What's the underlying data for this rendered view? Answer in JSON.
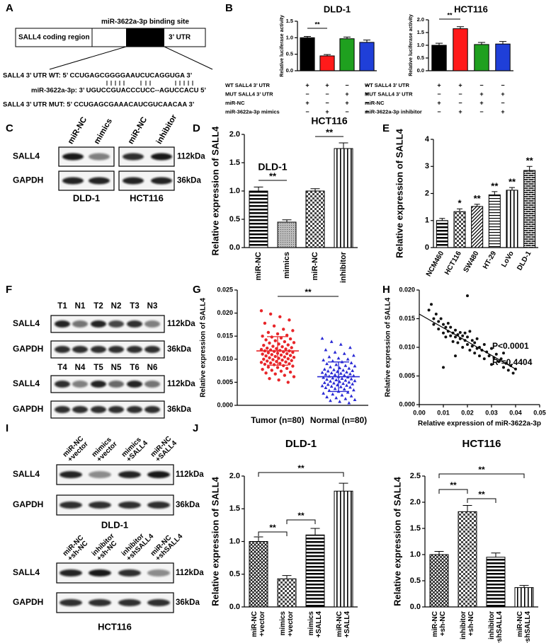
{
  "panel_labels": [
    "A",
    "B",
    "C",
    "D",
    "E",
    "F",
    "G",
    "H",
    "I",
    "J"
  ],
  "diagram": {
    "binding_site_label": "miR-3622a-3p binding site",
    "coding_region_label": "SALL4 coding region",
    "utr_label": "3’ UTR",
    "sequences": [
      "SALL4 3’ UTR WT: 5’ CCUGAGCGGGGAAUCUCAGGUGA 3’",
      "miR-3622a-3p:  3’ UGUCCGUACCCUCC--AGUCCACU 5’",
      "SALL4 3’ UTR MUT: 5’ CCUGAGCGAAACAUCGUCAACAA 3’"
    ]
  },
  "chart_data": [
    {
      "type": "bar",
      "title": "DLD-1",
      "y_label": "Relative luciferase activity",
      "values": [
        1.0,
        0.45,
        0.97,
        0.86
      ],
      "errors": [
        0.04,
        0.04,
        0.05,
        0.07
      ],
      "colors": [
        "#000000",
        "#ff1a1a",
        "#1fa01f",
        "#1f3fd8"
      ],
      "ylim": [
        0,
        1.5
      ],
      "yticks": [
        {
          "value": 0,
          "label": "0.0"
        },
        0.5,
        {
          "value": 1,
          "label": "1.0"
        },
        1.5
      ],
      "annotations": [
        "**"
      ],
      "conditions": [
        {
          "label": "WT SALL4 3’ UTR",
          "signs": [
            "+",
            "+",
            "−",
            "−"
          ]
        },
        {
          "label": "MUT SALL4 3’ UTR",
          "signs": [
            "−",
            "−",
            "+",
            "+"
          ]
        },
        {
          "label": "miR-NC",
          "signs": [
            "+",
            "−",
            "+",
            "−"
          ]
        },
        {
          "label": "miR-3622a-3p mimics",
          "signs": [
            "−",
            "+",
            "−",
            "+"
          ]
        }
      ]
    },
    {
      "type": "bar",
      "title": "HCT116",
      "y_label": "Relative luciferase activity",
      "values": [
        1.0,
        1.65,
        1.03,
        1.05
      ],
      "errors": [
        0.08,
        0.08,
        0.08,
        0.1
      ],
      "colors": [
        "#000000",
        "#ff1a1a",
        "#1fa01f",
        "#1f3fd8"
      ],
      "ylim": [
        0,
        2
      ],
      "yticks": [
        {
          "value": 0,
          "label": "0.0"
        },
        0.5,
        {
          "value": 1,
          "label": "1.0"
        },
        1.5,
        {
          "value": 2,
          "label": "2.0"
        }
      ],
      "annotations": [
        "**"
      ],
      "conditions": [
        {
          "label": "WT SALL4 3’ UTR",
          "signs": [
            "+",
            "+",
            "−",
            "−"
          ]
        },
        {
          "label": "MUT SALL4 3’ UTR",
          "signs": [
            "−",
            "−",
            "+",
            "+"
          ]
        },
        {
          "label": "miR-NC",
          "signs": [
            "+",
            "−",
            "+",
            "−"
          ]
        },
        {
          "label": "miR-3622a-3p inhibitor",
          "signs": [
            "−",
            "+",
            "−",
            "+"
          ]
        }
      ]
    },
    {
      "type": "bar",
      "y_label": "Relative expression of SALL4",
      "categories": [
        "miR-NC",
        "mimics",
        "miR-NC",
        "inhibitor"
      ],
      "values": [
        1.0,
        0.45,
        1.0,
        1.75
      ],
      "errors": [
        0.07,
        0.04,
        0.04,
        0.1
      ],
      "ylim": [
        0,
        2
      ],
      "yticks": [
        {
          "value": 0,
          "label": "0.0"
        },
        0.5,
        {
          "value": 1,
          "label": "1.0"
        },
        1.5,
        {
          "value": 2,
          "label": "2.0"
        }
      ],
      "group_labels": [
        "DLD-1",
        "HCT116"
      ],
      "annotations": [
        "**",
        "**"
      ]
    },
    {
      "type": "bar",
      "y_label": "Relative expression of SALL4",
      "categories": [
        "NCM460",
        "HCT116",
        "SW480",
        "HT-29",
        "LoVo",
        "DLD-1"
      ],
      "values": [
        1.0,
        1.33,
        1.52,
        1.95,
        2.12,
        2.85
      ],
      "errors": [
        0.08,
        0.1,
        0.08,
        0.12,
        0.1,
        0.15
      ],
      "value_annotations": [
        null,
        "*",
        "**",
        "**",
        "**",
        "**"
      ],
      "ylim": [
        0,
        4
      ],
      "yticks": [
        0,
        1,
        2,
        3,
        4
      ]
    },
    {
      "type": "dotplot",
      "y_label": "Relative expression of SALL4",
      "categories": [
        "Tumor (n=80)",
        "Normal (n=80)"
      ],
      "annotations": [
        "**"
      ],
      "ylim": [
        0,
        0.025
      ],
      "yticks": [
        {
          "value": 0,
          "label": "0.000"
        },
        0.005,
        {
          "value": 0.01,
          "label": "0.010"
        },
        0.015,
        {
          "value": 0.02,
          "label": "0.020"
        },
        0.025
      ],
      "groups": [
        {
          "color": "#e8262a",
          "mean": 0.0118,
          "sd": 0.0031,
          "values": [
            0.0205,
            0.0198,
            0.0192,
            0.0185,
            0.0178,
            0.0172,
            0.0165,
            0.0162,
            0.0158,
            0.0155,
            0.0152,
            0.015,
            0.0148,
            0.0146,
            0.0144,
            0.0142,
            0.014,
            0.0138,
            0.0136,
            0.0135,
            0.0133,
            0.0131,
            0.013,
            0.0128,
            0.0127,
            0.0125,
            0.0124,
            0.0123,
            0.0122,
            0.0121,
            0.012,
            0.0119,
            0.0118,
            0.0118,
            0.0117,
            0.0116,
            0.0115,
            0.0114,
            0.0113,
            0.0112,
            0.0111,
            0.011,
            0.0109,
            0.0108,
            0.0107,
            0.0106,
            0.0105,
            0.0104,
            0.0103,
            0.0102,
            0.0101,
            0.01,
            0.0099,
            0.0098,
            0.0097,
            0.0096,
            0.0095,
            0.0094,
            0.0093,
            0.0092,
            0.0091,
            0.009,
            0.0089,
            0.0088,
            0.0086,
            0.0085,
            0.0083,
            0.0082,
            0.008,
            0.0078,
            0.0076,
            0.0074,
            0.0072,
            0.007,
            0.0068,
            0.0065,
            0.0062,
            0.0058,
            0.0055,
            0.005
          ]
        },
        {
          "color": "#2a2ad4",
          "mean": 0.0062,
          "sd": 0.0032,
          "values": [
            0.0145,
            0.0138,
            0.0132,
            0.0125,
            0.012,
            0.0115,
            0.0112,
            0.0108,
            0.0105,
            0.0102,
            0.01,
            0.0098,
            0.0096,
            0.0094,
            0.0092,
            0.009,
            0.0088,
            0.0086,
            0.0085,
            0.0083,
            0.0081,
            0.008,
            0.0078,
            0.0077,
            0.0076,
            0.0075,
            0.0074,
            0.0073,
            0.0072,
            0.0071,
            0.007,
            0.0069,
            0.0068,
            0.0067,
            0.0066,
            0.0065,
            0.0064,
            0.0063,
            0.0062,
            0.0061,
            0.006,
            0.0059,
            0.0058,
            0.0057,
            0.0056,
            0.0055,
            0.0054,
            0.0053,
            0.0052,
            0.0051,
            0.005,
            0.0049,
            0.0048,
            0.0047,
            0.0046,
            0.0045,
            0.0044,
            0.0043,
            0.0042,
            0.0041,
            0.004,
            0.0039,
            0.0038,
            0.0036,
            0.0035,
            0.0033,
            0.0032,
            0.003,
            0.0028,
            0.0026,
            0.0024,
            0.0022,
            0.002,
            0.0018,
            0.0016,
            0.0014,
            0.0012,
            0.001,
            0.0008,
            0.0005
          ]
        }
      ]
    },
    {
      "type": "scatter",
      "x_label": "Relative expression of miR-3622a-3p",
      "y_label": "Relative expression of SALL4",
      "annotations": [
        "P<0.0001",
        "R²=0.4404"
      ],
      "xlim": [
        0,
        0.05
      ],
      "xticks": [
        {
          "value": 0,
          "label": "0.00"
        },
        0.01,
        0.02,
        0.03,
        0.04,
        0.05
      ],
      "ylim": [
        0,
        0.02
      ],
      "yticks": [
        {
          "value": 0,
          "label": "0.000"
        },
        0.005,
        {
          "value": 0.01,
          "label": "0.010"
        },
        0.015,
        {
          "value": 0.02,
          "label": "0.020"
        }
      ],
      "x": [
        0.004,
        0.005,
        0.006,
        0.006,
        0.007,
        0.008,
        0.008,
        0.009,
        0.01,
        0.01,
        0.011,
        0.011,
        0.012,
        0.012,
        0.013,
        0.013,
        0.014,
        0.014,
        0.015,
        0.015,
        0.016,
        0.016,
        0.017,
        0.017,
        0.018,
        0.018,
        0.019,
        0.019,
        0.02,
        0.02,
        0.02,
        0.021,
        0.021,
        0.022,
        0.022,
        0.023,
        0.023,
        0.024,
        0.024,
        0.025,
        0.025,
        0.026,
        0.027,
        0.027,
        0.028,
        0.029,
        0.03,
        0.03,
        0.031,
        0.032,
        0.033,
        0.034,
        0.035,
        0.035,
        0.036,
        0.037,
        0.038,
        0.039,
        0.04,
        0.01,
        0.015
      ],
      "y": [
        0.0165,
        0.0175,
        0.015,
        0.014,
        0.0158,
        0.0145,
        0.0132,
        0.015,
        0.014,
        0.0125,
        0.0135,
        0.0118,
        0.0142,
        0.0128,
        0.012,
        0.0135,
        0.011,
        0.0125,
        0.013,
        0.0118,
        0.0122,
        0.0108,
        0.0126,
        0.0115,
        0.012,
        0.01,
        0.0125,
        0.0112,
        0.019,
        0.0118,
        0.0105,
        0.0128,
        0.0095,
        0.0112,
        0.0102,
        0.0108,
        0.009,
        0.0098,
        0.0115,
        0.01,
        0.0085,
        0.0095,
        0.0105,
        0.008,
        0.0092,
        0.0085,
        0.0098,
        0.007,
        0.0082,
        0.0088,
        0.0075,
        0.008,
        0.0065,
        0.009,
        0.0072,
        0.006,
        0.0068,
        0.0055,
        0.0062,
        0.0065,
        0.0085
      ],
      "trend_x": [
        0,
        0.04
      ],
      "trend_y": [
        0.0158,
        0.0062
      ]
    },
    {
      "type": "bar",
      "title": "DLD-1",
      "y_label": "Relative expression of SALL4",
      "categories": [
        [
          "miR-NC",
          "+vector"
        ],
        [
          "mimics",
          "+vector"
        ],
        [
          "mimics",
          "+SALL4"
        ],
        [
          "miR-NC",
          "+SALL4"
        ]
      ],
      "values": [
        1.0,
        0.43,
        1.1,
        1.77
      ],
      "errors": [
        0.07,
        0.05,
        0.1,
        0.12
      ],
      "ylim": [
        0,
        2
      ],
      "yticks": [
        {
          "value": 0,
          "label": "0.0"
        },
        0.5,
        {
          "value": 1,
          "label": "1.0"
        },
        1.5,
        {
          "value": 2,
          "label": "2.0"
        }
      ],
      "annotations": [
        "**",
        "**",
        "**"
      ]
    },
    {
      "type": "bar",
      "title": "HCT116",
      "y_label": "Relative expression of SALL4",
      "categories": [
        [
          "miR-NC",
          "+sh-NC"
        ],
        [
          "inhibitor",
          "+sh-NC"
        ],
        [
          "inhibitor",
          "+shSALL4"
        ],
        [
          "miR-NC",
          "+shSALL4"
        ]
      ],
      "values": [
        1.0,
        1.82,
        0.95,
        0.37
      ],
      "errors": [
        0.06,
        0.12,
        0.08,
        0.04
      ],
      "ylim": [
        0,
        2.5
      ],
      "yticks": [
        {
          "value": 0,
          "label": "0.0"
        },
        0.5,
        {
          "value": 1,
          "label": "1.0"
        },
        1.5,
        {
          "value": 2,
          "label": "2.0"
        },
        2.5
      ],
      "annotations": [
        "**",
        "**",
        "**"
      ]
    }
  ],
  "blot_c": {
    "lanes": [
      "miR-NC",
      "mimics",
      "miR-NC",
      "inhibitor"
    ],
    "rows": [
      {
        "protein": "SALL4",
        "size": "112kDa"
      },
      {
        "protein": "GAPDH",
        "size": "36kDa"
      }
    ],
    "cell_lines": [
      "DLD-1",
      "HCT116"
    ]
  },
  "blot_f": {
    "sets": [
      {
        "lanes": [
          "T1",
          "N1",
          "T2",
          "N2",
          "T3",
          "N3"
        ],
        "rows": [
          {
            "protein": "SALL4",
            "size": "112kDa"
          },
          {
            "protein": "GAPDH",
            "size": "36kDa"
          }
        ]
      },
      {
        "lanes": [
          "T4",
          "N4",
          "T5",
          "N5",
          "T6",
          "N6"
        ],
        "rows": [
          {
            "protein": "SALL4",
            "size": "112kDa"
          },
          {
            "protein": "GAPDH",
            "size": "36kDa"
          }
        ]
      }
    ]
  },
  "blot_i": {
    "sets": [
      {
        "lanes": [
          [
            "miR-NC",
            "+vector"
          ],
          [
            "mimics",
            "+vector"
          ],
          [
            "mimics",
            "+SALL4"
          ],
          [
            "miR-NC",
            "+SALL4"
          ]
        ],
        "rows": [
          {
            "protein": "SALL4",
            "size": "112kDa"
          },
          {
            "protein": "GAPDH",
            "size": "36kDa"
          }
        ],
        "cell_line": "DLD-1"
      },
      {
        "lanes": [
          [
            "miR-NC",
            "+sh-NC"
          ],
          [
            "inhibitor",
            "+sh-NC"
          ],
          [
            "inhibitor",
            "+shSALL4"
          ],
          [
            "miR-NC",
            "+shSALL4"
          ]
        ],
        "rows": [
          {
            "protein": "SALL4",
            "size": "112kDa"
          },
          {
            "protein": "GAPDH",
            "size": "36kDa"
          }
        ],
        "cell_line": "HCT116"
      }
    ]
  }
}
